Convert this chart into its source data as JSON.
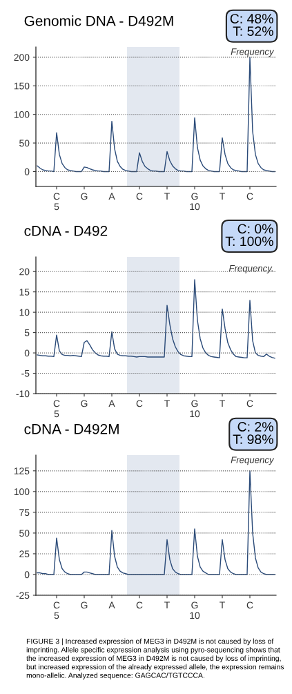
{
  "chart_data": [
    {
      "type": "line",
      "title": "Genomic DNA - D492M",
      "annotations": [
        "C: 48%\nT: 52%",
        "Frequency"
      ],
      "categories": [
        null,
        null,
        null,
        null,
        null,
        null,
        null,
        "C\n5",
        null,
        null,
        null,
        null,
        null,
        null,
        null,
        null,
        null,
        "G",
        null,
        null,
        null,
        null,
        null,
        null,
        null,
        null,
        null,
        "A",
        null,
        null,
        null,
        null,
        null,
        null,
        null,
        null,
        null,
        "C",
        null,
        null,
        null,
        null,
        null,
        null,
        null,
        null,
        null,
        "T",
        null,
        null,
        null,
        null,
        null,
        null,
        null,
        null,
        null,
        "G\n10",
        null,
        null,
        null,
        null,
        null,
        null,
        null,
        null,
        null,
        "T",
        null,
        null,
        null,
        null,
        null,
        null,
        null,
        null,
        null,
        "C",
        null,
        null,
        null,
        null,
        null,
        null,
        null,
        null,
        null
      ],
      "series": [
        {
          "color": "#2a4a78",
          "values": [
            10,
            6,
            3,
            2,
            1,
            1,
            0,
            68,
            30,
            14,
            7,
            3,
            2,
            1,
            0,
            0,
            0,
            8,
            7,
            5,
            3,
            2,
            1,
            1,
            0,
            0,
            0,
            88,
            40,
            18,
            9,
            4,
            2,
            1,
            0,
            0,
            0,
            33,
            18,
            9,
            5,
            2,
            1,
            1,
            0,
            0,
            0,
            35,
            19,
            10,
            5,
            2,
            1,
            1,
            0,
            0,
            0,
            94,
            42,
            20,
            10,
            5,
            2,
            1,
            0,
            0,
            0,
            59,
            30,
            14,
            7,
            3,
            2,
            1,
            0,
            0,
            0,
            200,
            70,
            30,
            14,
            7,
            3,
            2,
            1,
            0,
            0
          ]
        }
      ],
      "ylim": [
        -26,
        218
      ],
      "yticks": [
        0,
        50,
        100,
        150,
        200
      ],
      "grid": "y"
    },
    {
      "type": "line",
      "title": "cDNA - D492",
      "annotations": [
        "C: 0%\nT: 100%",
        "Frequency."
      ],
      "categories": [
        null,
        null,
        null,
        null,
        null,
        null,
        null,
        "C\n5",
        null,
        null,
        null,
        null,
        null,
        null,
        null,
        null,
        null,
        "G",
        null,
        null,
        null,
        null,
        null,
        null,
        null,
        null,
        null,
        "A",
        null,
        null,
        null,
        null,
        null,
        null,
        null,
        null,
        null,
        "C",
        null,
        null,
        null,
        null,
        null,
        null,
        null,
        null,
        null,
        "T",
        null,
        null,
        null,
        null,
        null,
        null,
        null,
        null,
        null,
        "G\n10",
        null,
        null,
        null,
        null,
        null,
        null,
        null,
        null,
        null,
        "T",
        null,
        null,
        null,
        null,
        null,
        null,
        null,
        null,
        null,
        "C",
        null,
        null,
        null,
        null,
        null,
        null,
        null,
        null,
        null
      ],
      "series": [
        {
          "color": "#2a4a78",
          "values": [
            -0.5,
            -0.6,
            -0.7,
            -0.7,
            -0.8,
            -0.8,
            -0.9,
            4.4,
            0.5,
            -0.4,
            -0.6,
            -0.6,
            -0.7,
            -0.6,
            -0.7,
            -0.8,
            -0.9,
            2.6,
            3,
            2,
            0.8,
            0,
            -0.5,
            -0.7,
            -0.8,
            -0.8,
            -0.9,
            5.2,
            1,
            -0.3,
            -0.6,
            -0.7,
            -0.7,
            -0.8,
            -0.8,
            -0.9,
            -1,
            -0.9,
            -0.9,
            -0.9,
            -1,
            -1,
            -1,
            -1,
            -1,
            -1,
            -1,
            11.7,
            7,
            3.5,
            1.5,
            0.3,
            -0.4,
            -0.7,
            -0.8,
            -0.9,
            -0.9,
            18,
            8,
            3.5,
            1.2,
            0,
            -0.6,
            -0.9,
            -1,
            -1.1,
            -1.2,
            10.8,
            6,
            2.5,
            0.8,
            -0.3,
            -0.9,
            -1,
            -1.1,
            -1.2,
            -1.2,
            12.9,
            3,
            0,
            -0.6,
            -0.8,
            -0.9,
            -0.3,
            -0.8,
            -1.1,
            -1.3
          ]
        }
      ],
      "ylim": [
        -10,
        23.6
      ],
      "yticks": [
        -10,
        -5,
        0,
        5,
        10,
        15,
        20
      ],
      "grid": "y"
    },
    {
      "type": "line",
      "title": "cDNA - D492M",
      "annotations": [
        "C: 2%\nT: 98%",
        "Frequency",
        "FIGURE 3 | Increased expression of MEG3 in D492M is not caused by loss of imprinting. Allele specific expression analysis using pyro-sequencing shows that the increased expression of MEG3 in D492M is not caused by loss of imprinting, but increased expression of the already expressed allele, the expression remains mono-allelic. Analyzed sequence: GAGCAC/TGTCCCA."
      ],
      "categories": [
        null,
        null,
        null,
        null,
        null,
        null,
        null,
        "C\n5",
        null,
        null,
        null,
        null,
        null,
        null,
        null,
        null,
        null,
        "G",
        null,
        null,
        null,
        null,
        null,
        null,
        null,
        null,
        null,
        "A",
        null,
        null,
        null,
        null,
        null,
        null,
        null,
        null,
        null,
        "C",
        null,
        null,
        null,
        null,
        null,
        null,
        null,
        null,
        null,
        "T",
        null,
        null,
        null,
        null,
        null,
        null,
        null,
        null,
        null,
        "G\n10",
        null,
        null,
        null,
        null,
        null,
        null,
        null,
        null,
        null,
        "T",
        null,
        null,
        null,
        null,
        null,
        null,
        null,
        null,
        null,
        "C",
        null,
        null,
        null,
        null,
        null,
        null,
        null,
        null,
        null
      ],
      "series": [
        {
          "color": "#2a4a78",
          "values": [
            2,
            2,
            1,
            1,
            0,
            0,
            0,
            44,
            18,
            7,
            3,
            1,
            0,
            0,
            0,
            0,
            0,
            3,
            3,
            2,
            1,
            0,
            0,
            0,
            0,
            0,
            0,
            53,
            22,
            9,
            4,
            2,
            1,
            0,
            0,
            0,
            0,
            0,
            0,
            0,
            0,
            0,
            0,
            0,
            0,
            0,
            0,
            42,
            18,
            7,
            3,
            1,
            0,
            0,
            0,
            0,
            0,
            55,
            22,
            9,
            4,
            2,
            0,
            0,
            0,
            0,
            0,
            42,
            18,
            7,
            3,
            1,
            0,
            0,
            0,
            0,
            0,
            125,
            50,
            20,
            8,
            3,
            1,
            0,
            0,
            0,
            0
          ]
        }
      ],
      "ylim": [
        -25,
        144
      ],
      "yticks": [
        -25,
        0,
        25,
        50,
        75,
        100,
        125
      ],
      "grid": "y"
    }
  ]
}
